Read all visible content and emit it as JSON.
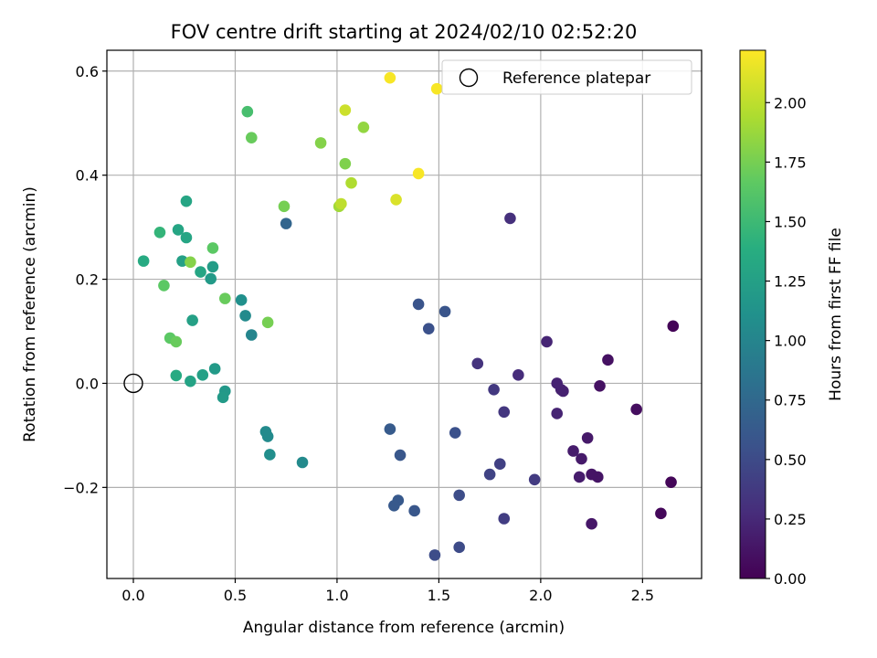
{
  "chart_data": {
    "type": "scatter",
    "title": "FOV centre drift starting at 2024/02/10 02:52:20",
    "xlabel": "Angular distance from reference (arcmin)",
    "ylabel": "Rotation from reference (arcmin)",
    "xlim": [
      -0.13,
      2.79
    ],
    "ylim": [
      -0.375,
      0.64
    ],
    "xticks": [
      0.0,
      0.5,
      1.0,
      1.5,
      2.0,
      2.5
    ],
    "xtick_labels": [
      "0.0",
      "0.5",
      "1.0",
      "1.5",
      "2.0",
      "2.5"
    ],
    "yticks": [
      -0.2,
      0.0,
      0.2,
      0.4,
      0.6
    ],
    "ytick_labels": [
      "−0.2",
      "0.0",
      "0.2",
      "0.4",
      "0.6"
    ],
    "grid": true,
    "colormap": "viridis",
    "colorbar": {
      "label": "Hours from first FF file",
      "range": [
        0.0,
        2.22
      ],
      "ticks": [
        0.0,
        0.25,
        0.5,
        0.75,
        1.0,
        1.25,
        1.5,
        1.75,
        2.0
      ],
      "tick_labels": [
        "0.00",
        "0.25",
        "0.50",
        "0.75",
        "1.00",
        "1.25",
        "1.50",
        "1.75",
        "2.00"
      ]
    },
    "legend": {
      "placement": "top-right",
      "entries": [
        "Reference platepar"
      ]
    },
    "reference_point": {
      "x": 0.0,
      "y": 0.0
    },
    "points": [
      {
        "x": 2.65,
        "y": 0.11,
        "c": 0.02
      },
      {
        "x": 2.64,
        "y": -0.19,
        "c": 0.03
      },
      {
        "x": 2.59,
        "y": -0.25,
        "c": 0.04
      },
      {
        "x": 2.47,
        "y": -0.05,
        "c": 0.08
      },
      {
        "x": 2.33,
        "y": 0.045,
        "c": 0.1
      },
      {
        "x": 2.29,
        "y": -0.005,
        "c": 0.1
      },
      {
        "x": 2.28,
        "y": -0.18,
        "c": 0.12
      },
      {
        "x": 2.25,
        "y": -0.175,
        "c": 0.12
      },
      {
        "x": 2.25,
        "y": -0.27,
        "c": 0.14
      },
      {
        "x": 2.23,
        "y": -0.105,
        "c": 0.15
      },
      {
        "x": 2.2,
        "y": -0.145,
        "c": 0.16
      },
      {
        "x": 2.19,
        "y": -0.18,
        "c": 0.17
      },
      {
        "x": 2.16,
        "y": -0.13,
        "c": 0.17
      },
      {
        "x": 2.11,
        "y": -0.015,
        "c": 0.2
      },
      {
        "x": 2.1,
        "y": -0.012,
        "c": 0.2
      },
      {
        "x": 2.08,
        "y": 0.0,
        "c": 0.21
      },
      {
        "x": 2.08,
        "y": -0.058,
        "c": 0.22
      },
      {
        "x": 2.03,
        "y": 0.08,
        "c": 0.23
      },
      {
        "x": 1.89,
        "y": 0.016,
        "c": 0.28
      },
      {
        "x": 1.85,
        "y": 0.317,
        "c": 0.3
      },
      {
        "x": 1.97,
        "y": -0.185,
        "c": 0.38
      },
      {
        "x": 1.82,
        "y": -0.055,
        "c": 0.35
      },
      {
        "x": 1.82,
        "y": -0.26,
        "c": 0.4
      },
      {
        "x": 1.8,
        "y": -0.155,
        "c": 0.42
      },
      {
        "x": 1.77,
        "y": -0.012,
        "c": 0.36
      },
      {
        "x": 1.75,
        "y": -0.175,
        "c": 0.44
      },
      {
        "x": 1.69,
        "y": 0.038,
        "c": 0.32
      },
      {
        "x": 1.6,
        "y": -0.215,
        "c": 0.52
      },
      {
        "x": 1.6,
        "y": -0.315,
        "c": 0.5
      },
      {
        "x": 1.58,
        "y": -0.095,
        "c": 0.55
      },
      {
        "x": 1.53,
        "y": 0.138,
        "c": 0.58
      },
      {
        "x": 1.48,
        "y": -0.33,
        "c": 0.52
      },
      {
        "x": 1.45,
        "y": 0.105,
        "c": 0.55
      },
      {
        "x": 1.4,
        "y": 0.152,
        "c": 0.57
      },
      {
        "x": 1.38,
        "y": -0.245,
        "c": 0.6
      },
      {
        "x": 1.31,
        "y": -0.138,
        "c": 0.6
      },
      {
        "x": 1.3,
        "y": -0.225,
        "c": 0.62
      },
      {
        "x": 1.28,
        "y": -0.235,
        "c": 0.62
      },
      {
        "x": 1.26,
        "y": -0.088,
        "c": 0.63
      },
      {
        "x": 0.75,
        "y": 0.307,
        "c": 0.72
      },
      {
        "x": 0.83,
        "y": -0.152,
        "c": 1.05
      },
      {
        "x": 0.67,
        "y": -0.137,
        "c": 1.08
      },
      {
        "x": 0.66,
        "y": -0.102,
        "c": 1.05
      },
      {
        "x": 0.65,
        "y": -0.093,
        "c": 1.05
      },
      {
        "x": 0.58,
        "y": 0.093,
        "c": 1.0
      },
      {
        "x": 0.55,
        "y": 0.13,
        "c": 1.05
      },
      {
        "x": 0.53,
        "y": 0.16,
        "c": 1.1
      },
      {
        "x": 0.45,
        "y": -0.015,
        "c": 1.18
      },
      {
        "x": 0.44,
        "y": -0.027,
        "c": 1.2
      },
      {
        "x": 0.4,
        "y": 0.028,
        "c": 1.2
      },
      {
        "x": 0.39,
        "y": 0.224,
        "c": 1.22
      },
      {
        "x": 0.38,
        "y": 0.201,
        "c": 1.2
      },
      {
        "x": 0.34,
        "y": 0.016,
        "c": 1.25
      },
      {
        "x": 0.33,
        "y": 0.214,
        "c": 1.3
      },
      {
        "x": 0.29,
        "y": 0.121,
        "c": 1.25
      },
      {
        "x": 0.28,
        "y": 0.004,
        "c": 1.28
      },
      {
        "x": 0.26,
        "y": 0.28,
        "c": 1.3
      },
      {
        "x": 0.26,
        "y": 0.35,
        "c": 1.3
      },
      {
        "x": 0.24,
        "y": 0.235,
        "c": 1.25
      },
      {
        "x": 0.22,
        "y": 0.295,
        "c": 1.3
      },
      {
        "x": 0.21,
        "y": 0.015,
        "c": 1.35
      },
      {
        "x": 0.13,
        "y": 0.29,
        "c": 1.45
      },
      {
        "x": 0.05,
        "y": 0.235,
        "c": 1.35
      },
      {
        "x": 0.15,
        "y": 0.188,
        "c": 1.65
      },
      {
        "x": 0.18,
        "y": 0.087,
        "c": 1.65
      },
      {
        "x": 0.21,
        "y": 0.08,
        "c": 1.7
      },
      {
        "x": 0.28,
        "y": 0.233,
        "c": 1.8
      },
      {
        "x": 0.39,
        "y": 0.26,
        "c": 1.65
      },
      {
        "x": 0.45,
        "y": 0.163,
        "c": 1.7
      },
      {
        "x": 0.66,
        "y": 0.117,
        "c": 1.75
      },
      {
        "x": 0.56,
        "y": 0.522,
        "c": 1.55
      },
      {
        "x": 0.58,
        "y": 0.472,
        "c": 1.7
      },
      {
        "x": 0.74,
        "y": 0.34,
        "c": 1.75
      },
      {
        "x": 0.92,
        "y": 0.462,
        "c": 1.8
      },
      {
        "x": 1.01,
        "y": 0.34,
        "c": 1.9
      },
      {
        "x": 1.02,
        "y": 0.345,
        "c": 2.0
      },
      {
        "x": 1.04,
        "y": 0.422,
        "c": 1.78
      },
      {
        "x": 1.04,
        "y": 0.525,
        "c": 2.05
      },
      {
        "x": 1.07,
        "y": 0.385,
        "c": 1.95
      },
      {
        "x": 1.13,
        "y": 0.492,
        "c": 1.85
      },
      {
        "x": 1.26,
        "y": 0.587,
        "c": 2.2
      },
      {
        "x": 1.29,
        "y": 0.353,
        "c": 2.1
      },
      {
        "x": 1.4,
        "y": 0.403,
        "c": 2.2
      },
      {
        "x": 1.49,
        "y": 0.566,
        "c": 2.2
      }
    ]
  }
}
